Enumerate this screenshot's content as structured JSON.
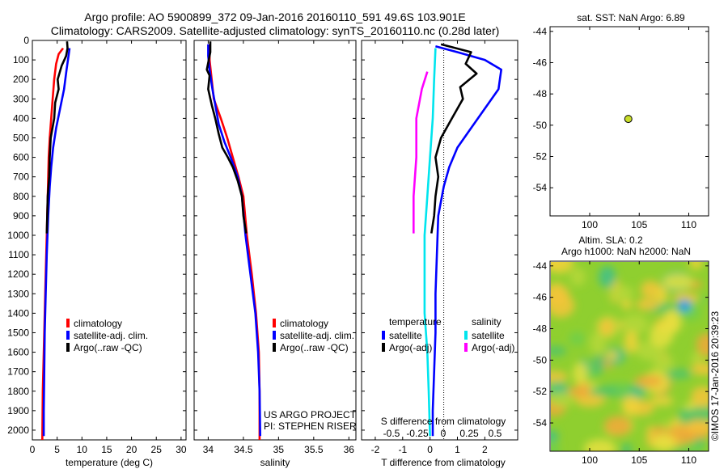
{
  "header": {
    "line1": "Argo profile: AO 5900899_372 09-Jan-2016 20160110_591 49.6S 103.901E",
    "line2": "Climatology: CARS2009. Satellite-adjusted climatology: synTS_20160110.nc (0.28d later)"
  },
  "colors": {
    "climatology": "#ff0000",
    "satellite": "#0000ff",
    "argo": "#000000",
    "cyan": "#00e5ee",
    "magenta": "#ff00ff",
    "marker": "#c8dd2a"
  },
  "legend_labels": {
    "climatology": "climatology",
    "satellite_adj": "satellite-adj. clim.",
    "argo_raw": "Argo(..raw -QC)",
    "temperature": "temperature",
    "salinity": "salinity",
    "satellite": "satellite",
    "argo_adj": "Argo(-adj)"
  },
  "credits": {
    "line1": "US ARGO PROJECT",
    "line2": "PI: STEPHEN RISER"
  },
  "sst_title": "sat. SST: NaN Argo: 6.89",
  "sla_title1": "Altim. SLA: 0.2",
  "sla_title2": "Argo h1000: NaN h2000: NaN",
  "timestamp": "©IMOS 17-Jan-2016 20:39:23",
  "chart_data": [
    {
      "type": "line",
      "xlabel": "temperature (deg C)",
      "xlim": [
        0,
        31
      ],
      "ylim": [
        0,
        2050
      ],
      "xticks": [
        "0",
        "5",
        "10",
        "15",
        "20",
        "25",
        "30"
      ],
      "xtick_values": [
        0,
        5,
        10,
        15,
        20,
        25,
        30
      ],
      "yticks": [
        "0",
        "100",
        "200",
        "300",
        "400",
        "500",
        "600",
        "700",
        "800",
        "900",
        "1000",
        "1100",
        "1200",
        "1300",
        "1400",
        "1500",
        "1600",
        "1700",
        "1800",
        "1900",
        "2000"
      ],
      "ytick_values": [
        0,
        100,
        200,
        300,
        400,
        500,
        600,
        700,
        800,
        900,
        1000,
        1100,
        1200,
        1300,
        1400,
        1500,
        1600,
        1700,
        1800,
        1900,
        2000
      ],
      "series": [
        {
          "name": "climatology",
          "color": "#ff0000",
          "points": [
            [
              6.2,
              40
            ],
            [
              5.3,
              70
            ],
            [
              4.8,
              120
            ],
            [
              4.4,
              200
            ],
            [
              4.1,
              300
            ],
            [
              3.8,
              400
            ],
            [
              3.5,
              500
            ],
            [
              3.3,
              600
            ],
            [
              3.1,
              800
            ],
            [
              2.9,
              1000
            ],
            [
              2.7,
              1200
            ],
            [
              2.5,
              1400
            ],
            [
              2.3,
              1600
            ],
            [
              2.1,
              1800
            ],
            [
              2.0,
              2050
            ]
          ]
        },
        {
          "name": "satellite-adj. clim.",
          "color": "#0000ff",
          "points": [
            [
              7.5,
              40
            ],
            [
              7.3,
              80
            ],
            [
              6.9,
              150
            ],
            [
              6.4,
              250
            ],
            [
              5.6,
              350
            ],
            [
              4.8,
              450
            ],
            [
              4.2,
              550
            ],
            [
              3.8,
              650
            ],
            [
              3.5,
              750
            ],
            [
              3.2,
              900
            ],
            [
              2.9,
              1100
            ],
            [
              2.7,
              1300
            ],
            [
              2.5,
              1500
            ],
            [
              2.4,
              1700
            ],
            [
              2.3,
              1900
            ],
            [
              2.3,
              2030
            ]
          ]
        },
        {
          "name": "Argo(..raw -QC)",
          "color": "#000000",
          "points": [
            [
              7.0,
              5
            ],
            [
              7.1,
              40
            ],
            [
              6.8,
              80
            ],
            [
              5.9,
              130
            ],
            [
              5.1,
              200
            ],
            [
              5.3,
              250
            ],
            [
              4.6,
              320
            ],
            [
              4.4,
              400
            ],
            [
              3.7,
              500
            ],
            [
              3.5,
              600
            ],
            [
              3.4,
              700
            ],
            [
              3.1,
              800
            ],
            [
              3.0,
              900
            ],
            [
              2.9,
              990
            ]
          ]
        }
      ]
    },
    {
      "type": "line",
      "xlabel": "salinity",
      "xlim": [
        33.8,
        36.1
      ],
      "ylim": [
        0,
        2050
      ],
      "xticks": [
        "34",
        "34.5",
        "35",
        "35.5",
        "36"
      ],
      "xtick_values": [
        34,
        34.5,
        35,
        35.5,
        36
      ],
      "series": [
        {
          "name": "climatology",
          "color": "#ff0000",
          "points": [
            [
              34.02,
              20
            ],
            [
              34.02,
              100
            ],
            [
              34.05,
              200
            ],
            [
              34.08,
              300
            ],
            [
              34.18,
              400
            ],
            [
              34.27,
              500
            ],
            [
              34.35,
              600
            ],
            [
              34.43,
              700
            ],
            [
              34.5,
              800
            ],
            [
              34.55,
              1000
            ],
            [
              34.62,
              1200
            ],
            [
              34.68,
              1400
            ],
            [
              34.72,
              1600
            ],
            [
              34.73,
              1800
            ],
            [
              34.73,
              2050
            ]
          ]
        },
        {
          "name": "satellite-adj. clim.",
          "color": "#0000ff",
          "points": [
            [
              34.0,
              20
            ],
            [
              34.0,
              80
            ],
            [
              34.02,
              150
            ],
            [
              34.06,
              250
            ],
            [
              34.1,
              330
            ],
            [
              34.15,
              430
            ],
            [
              34.23,
              520
            ],
            [
              34.32,
              600
            ],
            [
              34.42,
              700
            ],
            [
              34.48,
              800
            ],
            [
              34.53,
              1000
            ],
            [
              34.6,
              1200
            ],
            [
              34.67,
              1400
            ],
            [
              34.71,
              1600
            ],
            [
              34.73,
              1800
            ],
            [
              34.74,
              2030
            ]
          ]
        },
        {
          "name": "Argo(..raw -QC)",
          "color": "#000000",
          "points": [
            [
              34.03,
              5
            ],
            [
              34.03,
              60
            ],
            [
              33.98,
              150
            ],
            [
              34.02,
              180
            ],
            [
              34.0,
              250
            ],
            [
              34.05,
              330
            ],
            [
              34.1,
              400
            ],
            [
              34.15,
              480
            ],
            [
              34.2,
              550
            ],
            [
              34.28,
              600
            ],
            [
              34.35,
              650
            ],
            [
              34.42,
              720
            ],
            [
              34.48,
              800
            ],
            [
              34.5,
              900
            ],
            [
              34.54,
              990
            ]
          ]
        }
      ]
    },
    {
      "type": "line",
      "xlabel": "T difference from climatology",
      "top_xlabel": "S difference from climatology",
      "xlim": [
        -2.5,
        3.2
      ],
      "ylim": [
        0,
        2050
      ],
      "xticks": [
        "-2",
        "-1",
        "0",
        "1",
        "2"
      ],
      "xtick_values": [
        -2,
        -1,
        0,
        1,
        2
      ],
      "top_xticks": [
        "-0.5",
        "-0.25",
        "0",
        "0.25",
        "0.5"
      ],
      "series": [
        {
          "name": "satellite",
          "group": "temperature",
          "color": "#0000ff",
          "points": [
            [
              0.2,
              30
            ],
            [
              1.0,
              60
            ],
            [
              2.0,
              100
            ],
            [
              2.6,
              150
            ],
            [
              2.5,
              250
            ],
            [
              2.0,
              350
            ],
            [
              1.5,
              450
            ],
            [
              1.0,
              550
            ],
            [
              0.7,
              650
            ],
            [
              0.5,
              750
            ],
            [
              0.3,
              900
            ],
            [
              0.25,
              1100
            ],
            [
              0.2,
              1300
            ],
            [
              0.2,
              1500
            ],
            [
              0.15,
              1700
            ],
            [
              0.1,
              1900
            ],
            [
              0.1,
              2030
            ]
          ]
        },
        {
          "name": "Argo(-adj)",
          "group": "temperature",
          "color": "#000000",
          "points": [
            [
              0.4,
              20
            ],
            [
              1.5,
              60
            ],
            [
              1.3,
              120
            ],
            [
              1.7,
              170
            ],
            [
              1.1,
              240
            ],
            [
              1.2,
              300
            ],
            [
              0.8,
              400
            ],
            [
              0.4,
              500
            ],
            [
              0.2,
              600
            ],
            [
              0.3,
              700
            ],
            [
              0.2,
              800
            ],
            [
              0.15,
              900
            ],
            [
              0.05,
              990
            ]
          ]
        },
        {
          "name": "satellite",
          "group": "salinity",
          "color": "#00e5ee",
          "points": [
            [
              0.2,
              40
            ],
            [
              0.15,
              200
            ],
            [
              0.1,
              400
            ],
            [
              0.0,
              600
            ],
            [
              -0.1,
              800
            ],
            [
              -0.2,
              1000
            ],
            [
              -0.2,
              1200
            ],
            [
              -0.2,
              1400
            ],
            [
              -0.1,
              1600
            ],
            [
              -0.05,
              1800
            ],
            [
              0.0,
              2030
            ]
          ]
        },
        {
          "name": "Argo(-adj)",
          "group": "salinity",
          "color": "#ff00ff",
          "points": [
            [
              -0.1,
              160
            ],
            [
              -0.3,
              250
            ],
            [
              -0.5,
              400
            ],
            [
              -0.5,
              600
            ],
            [
              -0.6,
              800
            ],
            [
              -0.6,
              990
            ]
          ]
        }
      ]
    },
    {
      "type": "scatter",
      "title": "sat. SST: NaN Argo: 6.89",
      "xlim": [
        96,
        112
      ],
      "ylim": [
        -55.8,
        -43.7
      ],
      "xticks": [
        "100",
        "105",
        "110"
      ],
      "xtick_values": [
        100,
        105,
        110
      ],
      "yticks": [
        "-44",
        "-46",
        "-48",
        "-50",
        "-52",
        "-54"
      ],
      "ytick_values": [
        -44,
        -46,
        -48,
        -50,
        -52,
        -54
      ],
      "points": [
        [
          103.9,
          -49.6
        ]
      ]
    },
    {
      "type": "heatmap",
      "title": "Altim. SLA: 0.2",
      "subtitle": "Argo h1000: NaN h2000: NaN",
      "xlim": [
        96,
        112
      ],
      "ylim": [
        -55.8,
        -43.7
      ],
      "xticks": [
        "100",
        "105",
        "110"
      ],
      "xtick_values": [
        100,
        105,
        110
      ],
      "yticks": [
        "-44",
        "-46",
        "-48",
        "-50",
        "-52",
        "-54"
      ],
      "ytick_values": [
        -44,
        -46,
        -48,
        -50,
        -52,
        -54
      ]
    }
  ]
}
